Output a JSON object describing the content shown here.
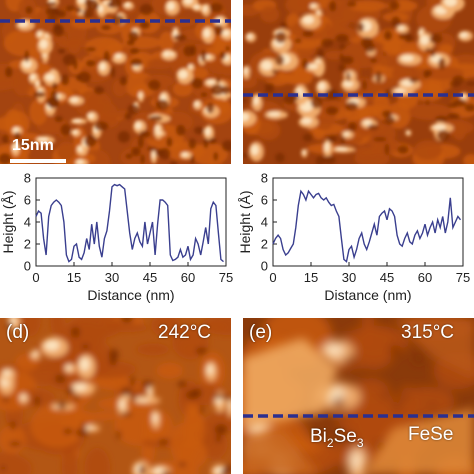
{
  "panels": {
    "a": {
      "label": "",
      "profile_line_color": "#2b2f8f"
    },
    "b": {
      "label": "",
      "profile_line_color": "#2b2f8f"
    },
    "d": {
      "label": "(d)",
      "temperature": "242°C"
    },
    "e": {
      "label": "(e)",
      "temperature": "315°C",
      "region_left": "Bi2Se3",
      "region_left_base": "Bi",
      "region_left_sub1": "2",
      "region_left_mid": "Se",
      "region_left_sub2": "3",
      "region_right": "FeSe",
      "profile_line_color": "#2b2f8f"
    }
  },
  "scalebar": {
    "label": "15nm"
  },
  "colors": {
    "stm_dark": "#7a2d00",
    "stm_mid": "#c85a10",
    "stm_light": "#f2b070",
    "stm_bright": "#fde9c8",
    "profile": "#3a3f8f"
  },
  "chart_data": [
    {
      "type": "line",
      "title": "",
      "xlabel": "Distance (nm)",
      "ylabel": "Height (Å)",
      "xlim": [
        0,
        75
      ],
      "ylim": [
        0,
        8
      ],
      "xticks": [
        "0",
        "15",
        "30",
        "45",
        "60",
        "75"
      ],
      "yticks": [
        "0",
        "2",
        "4",
        "6",
        "8"
      ],
      "series": [
        {
          "x": [
            0,
            1,
            2,
            3,
            4,
            5,
            6,
            7,
            8,
            9,
            10,
            11,
            12,
            13,
            14,
            15,
            16,
            17,
            18,
            19,
            20,
            21,
            22,
            23,
            24,
            25,
            26,
            27,
            28,
            29,
            30,
            31,
            32,
            33,
            34,
            35,
            36,
            37,
            38,
            39,
            40,
            41,
            42,
            43,
            44,
            45,
            46,
            47,
            48,
            49,
            50,
            51,
            52,
            53,
            54,
            55,
            56,
            57,
            58,
            59,
            60,
            61,
            62,
            63,
            64,
            65,
            66,
            67,
            68,
            69,
            70,
            71,
            72,
            73,
            74
          ],
          "y": [
            4.5,
            5.0,
            4.8,
            2.5,
            1.0,
            4.5,
            5.5,
            5.8,
            6.0,
            5.8,
            5.5,
            4.0,
            1.0,
            0.4,
            0.6,
            1.8,
            2.0,
            0.8,
            0.6,
            1.2,
            2.5,
            1.5,
            3.8,
            2.0,
            4.0,
            1.8,
            0.8,
            2.5,
            3.2,
            5.0,
            7.2,
            7.4,
            7.3,
            7.4,
            7.2,
            7.0,
            5.0,
            3.0,
            1.5,
            2.5,
            3.0,
            2.2,
            1.8,
            4.0,
            2.0,
            3.0,
            4.0,
            1.0,
            3.8,
            6.0,
            6.0,
            5.8,
            5.5,
            1.0,
            0.5,
            0.6,
            0.8,
            1.5,
            0.8,
            1.0,
            1.8,
            0.6,
            1.0,
            2.5,
            2.0,
            1.0,
            2.2,
            3.5,
            2.0,
            5.2,
            5.8,
            5.5,
            3.0,
            0.6,
            0.4
          ]
        }
      ]
    },
    {
      "type": "line",
      "title": "",
      "xlabel": "Distance (nm)",
      "ylabel": "Height (Å)",
      "xlim": [
        0,
        75
      ],
      "ylim": [
        0,
        8
      ],
      "xticks": [
        "0",
        "15",
        "30",
        "45",
        "60",
        "75"
      ],
      "yticks": [
        "0",
        "2",
        "4",
        "6",
        "8"
      ],
      "series": [
        {
          "x": [
            0,
            1,
            2,
            3,
            4,
            5,
            6,
            7,
            8,
            9,
            10,
            11,
            12,
            13,
            14,
            15,
            16,
            17,
            18,
            19,
            20,
            21,
            22,
            23,
            24,
            25,
            26,
            27,
            28,
            29,
            30,
            31,
            32,
            33,
            34,
            35,
            36,
            37,
            38,
            39,
            40,
            41,
            42,
            43,
            44,
            45,
            46,
            47,
            48,
            49,
            50,
            51,
            52,
            53,
            54,
            55,
            56,
            57,
            58,
            59,
            60,
            61,
            62,
            63,
            64,
            65,
            66,
            67,
            68,
            69,
            70,
            71,
            72,
            73,
            74
          ],
          "y": [
            2.0,
            2.5,
            2.8,
            2.5,
            1.5,
            1.0,
            1.2,
            1.6,
            2.0,
            3.5,
            5.5,
            6.8,
            6.5,
            6.0,
            6.8,
            6.5,
            6.2,
            6.5,
            6.6,
            6.2,
            6.0,
            6.2,
            5.8,
            5.5,
            5.6,
            5.0,
            4.5,
            2.5,
            0.6,
            0.4,
            1.5,
            1.8,
            0.8,
            1.5,
            2.5,
            3.0,
            2.0,
            1.5,
            2.2,
            3.0,
            3.8,
            2.8,
            4.5,
            4.8,
            5.0,
            4.2,
            5.2,
            5.0,
            4.5,
            2.8,
            2.0,
            1.8,
            2.5,
            3.0,
            2.2,
            2.0,
            2.8,
            3.2,
            2.5,
            3.0,
            3.8,
            2.8,
            3.5,
            4.0,
            3.0,
            4.2,
            3.5,
            4.5,
            3.0,
            4.0,
            6.2,
            3.5,
            4.0,
            4.5,
            4.2
          ]
        }
      ]
    }
  ]
}
